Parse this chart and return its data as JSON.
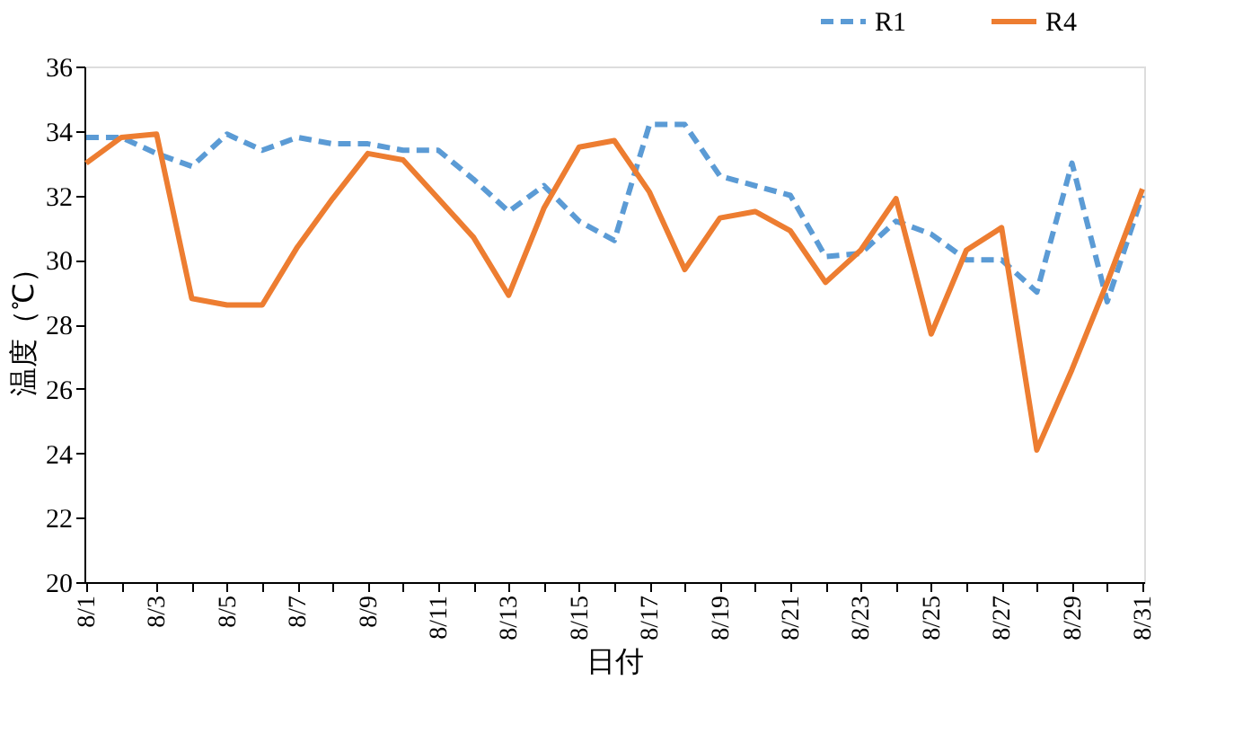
{
  "chart_data": {
    "type": "line",
    "xlabel": "日付",
    "ylabel": "温度（℃）",
    "categories": [
      "8/1",
      null,
      "8/3",
      null,
      "8/5",
      null,
      "8/7",
      null,
      "8/9",
      null,
      "8/11",
      null,
      "8/13",
      null,
      "8/15",
      null,
      "8/17",
      null,
      "8/19",
      null,
      "8/21",
      null,
      "8/23",
      null,
      "8/25",
      null,
      "8/27",
      null,
      "8/29",
      null,
      "8/31"
    ],
    "series": [
      {
        "name": "R1",
        "color": "#5b9bd5",
        "line_style": "dashed",
        "values": [
          33.8,
          33.8,
          33.3,
          32.9,
          33.9,
          33.4,
          33.8,
          33.6,
          33.6,
          33.4,
          33.4,
          32.5,
          31.5,
          32.3,
          31.2,
          30.6,
          34.2,
          34.2,
          32.6,
          32.3,
          32.0,
          30.1,
          30.2,
          31.2,
          30.8,
          30.0,
          30.0,
          29.0,
          33.0,
          28.7,
          32.0
        ]
      },
      {
        "name": "R4",
        "color": "#ed7d31",
        "line_style": "solid",
        "values": [
          33.0,
          33.8,
          33.9,
          28.8,
          28.6,
          28.6,
          30.4,
          31.9,
          33.3,
          33.1,
          31.9,
          30.7,
          28.9,
          31.6,
          33.5,
          33.7,
          32.1,
          29.7,
          31.3,
          31.5,
          30.9,
          29.3,
          30.3,
          31.9,
          27.7,
          30.3,
          31.0,
          24.1,
          26.6,
          29.3,
          32.2
        ]
      }
    ],
    "ylim": [
      20,
      36
    ],
    "yticks": [
      20,
      22,
      24,
      26,
      28,
      30,
      32,
      34,
      36
    ],
    "grid": false,
    "legend": "top right"
  }
}
